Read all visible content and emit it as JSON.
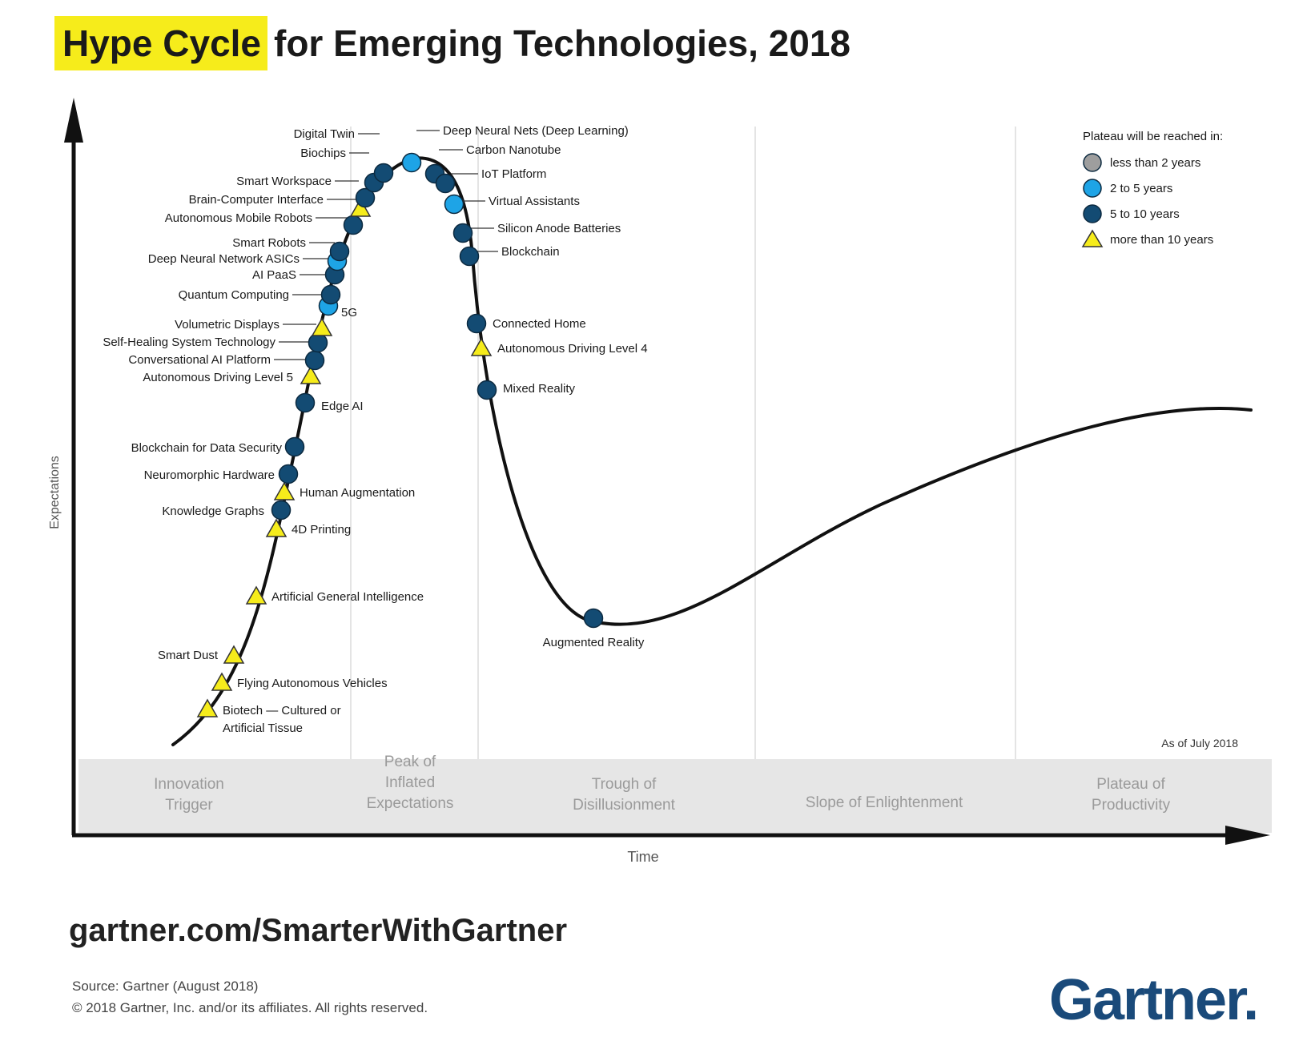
{
  "title": {
    "highlight": "Hype Cycle",
    "rest": "for Emerging Technologies, 2018"
  },
  "axes": {
    "y_label": "Expectations",
    "x_label": "Time"
  },
  "phases": [
    {
      "id": "innovation",
      "lines": [
        "Innovation",
        "Trigger"
      ]
    },
    {
      "id": "peak",
      "lines": [
        "Peak of",
        "Inflated",
        "Expectations"
      ]
    },
    {
      "id": "trough",
      "lines": [
        "Trough of",
        "Disillusionment"
      ]
    },
    {
      "id": "slope",
      "lines": [
        "Slope of Enlightenment"
      ]
    },
    {
      "id": "plateau",
      "lines": [
        "Plateau of",
        "Productivity"
      ]
    }
  ],
  "legend": {
    "title": "Plateau will be reached in:",
    "items": [
      {
        "key": "lt2",
        "label": "less than 2 years",
        "shape": "circle",
        "color": "#9e9e9e"
      },
      {
        "key": "2to5",
        "label": "2 to 5 years",
        "shape": "circle",
        "color": "#1ea4e6"
      },
      {
        "key": "5to10",
        "label": "5 to 10 years",
        "shape": "circle",
        "color": "#134b73"
      },
      {
        "key": "gt10",
        "label": "more than 10 years",
        "shape": "triangle",
        "color": "#f6ec1b"
      }
    ]
  },
  "as_of": "As of July 2018",
  "technologies": [
    {
      "label": "Biotech — Cultured or Artificial Tissue",
      "label_lines": [
        "Biotech — Cultured or",
        "Artificial Tissue"
      ],
      "cat": "gt10"
    },
    {
      "label": "Flying Autonomous Vehicles",
      "cat": "gt10"
    },
    {
      "label": "Smart Dust",
      "cat": "gt10"
    },
    {
      "label": "Artificial General Intelligence",
      "cat": "gt10"
    },
    {
      "label": "4D Printing",
      "cat": "gt10"
    },
    {
      "label": "Knowledge Graphs",
      "cat": "5to10"
    },
    {
      "label": "Human Augmentation",
      "cat": "gt10"
    },
    {
      "label": "Neuromorphic Hardware",
      "cat": "5to10"
    },
    {
      "label": "Blockchain for Data Security",
      "cat": "5to10"
    },
    {
      "label": "Edge AI",
      "cat": "5to10"
    },
    {
      "label": "Autonomous Driving Level 5",
      "cat": "gt10"
    },
    {
      "label": "Conversational AI Platform",
      "cat": "5to10"
    },
    {
      "label": "Self-Healing System Technology",
      "cat": "5to10"
    },
    {
      "label": "Volumetric Displays",
      "cat": "gt10"
    },
    {
      "label": "5G",
      "cat": "2to5"
    },
    {
      "label": "Quantum Computing",
      "cat": "5to10"
    },
    {
      "label": "AI PaaS",
      "cat": "5to10"
    },
    {
      "label": "Deep Neural Network ASICs",
      "cat": "2to5"
    },
    {
      "label": "Smart Robots",
      "cat": "5to10"
    },
    {
      "label": "Autonomous Mobile Robots",
      "cat": "5to10"
    },
    {
      "label": "Brain-Computer Interface",
      "cat": "gt10"
    },
    {
      "label": "Smart Workspace",
      "cat": "5to10"
    },
    {
      "label": "Biochips",
      "cat": "5to10"
    },
    {
      "label": "Digital Twin",
      "cat": "5to10"
    },
    {
      "label": "Deep Neural Nets (Deep Learning)",
      "cat": "2to5"
    },
    {
      "label": "Carbon Nanotube",
      "cat": "5to10"
    },
    {
      "label": "IoT Platform",
      "cat": "5to10"
    },
    {
      "label": "Virtual Assistants",
      "cat": "2to5"
    },
    {
      "label": "Silicon Anode Batteries",
      "cat": "5to10"
    },
    {
      "label": "Blockchain",
      "cat": "5to10"
    },
    {
      "label": "Connected Home",
      "cat": "5to10"
    },
    {
      "label": "Autonomous Driving Level 4",
      "cat": "gt10"
    },
    {
      "label": "Mixed Reality",
      "cat": "5to10"
    },
    {
      "label": "Augmented Reality",
      "cat": "5to10"
    }
  ],
  "footer": {
    "url": "gartner.com/SmarterWithGartner",
    "source": "Source: Gartner (August 2018)",
    "copyright": "© 2018 Gartner, Inc. and/or its affiliates. All rights reserved.",
    "logo": "Gartner."
  }
}
